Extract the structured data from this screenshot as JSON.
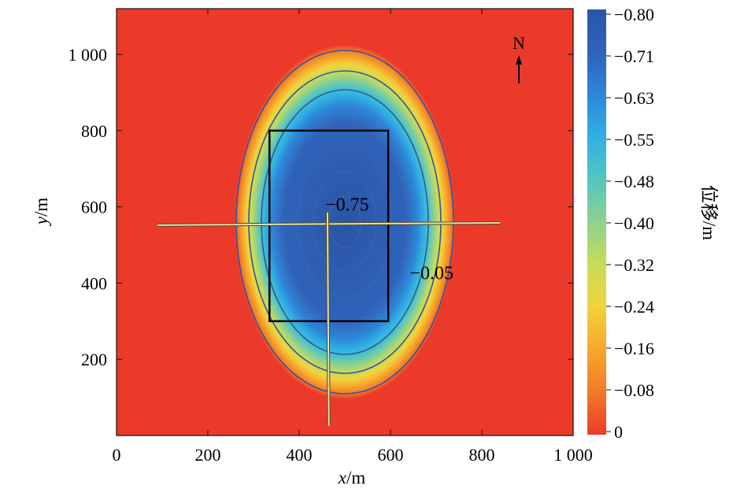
{
  "chart_data": {
    "type": "heatmap",
    "title": "",
    "xlabel": {
      "var": "x",
      "unit": "/m"
    },
    "ylabel": {
      "var": "y",
      "unit": "/m"
    },
    "xlim": [
      0,
      1000
    ],
    "ylim": [
      0,
      1120
    ],
    "xticks": [
      {
        "value": 0,
        "label": "0"
      },
      {
        "value": 200,
        "label": "200"
      },
      {
        "value": 400,
        "label": "400"
      },
      {
        "value": 600,
        "label": "600"
      },
      {
        "value": 800,
        "label": "800"
      },
      {
        "value": 1000,
        "label": "1 000"
      }
    ],
    "yticks": [
      {
        "value": 200,
        "label": "200"
      },
      {
        "value": 400,
        "label": "400"
      },
      {
        "value": 600,
        "label": "600"
      },
      {
        "value": 800,
        "label": "800"
      },
      {
        "value": 1000,
        "label": "1 000"
      }
    ],
    "colorbar": {
      "label": "位移/m",
      "range": [
        -0.8,
        0
      ],
      "ticks": [
        "−0.80",
        "−0.71",
        "−0.63",
        "−0.55",
        "−0.48",
        "−0.40",
        "−0.32",
        "−0.24",
        "−0.16",
        "−0.08",
        "0"
      ],
      "colors": [
        "#2b55a6",
        "#2f63bb",
        "#2e86d8",
        "#2fb1e4",
        "#53c6bf",
        "#8fd090",
        "#c7dc58",
        "#f1d33b",
        "#f7a72c",
        "#f17a26",
        "#ec3a2a"
      ]
    },
    "background_color": "#ec3a2a",
    "subsidence_center": {
      "x": 500,
      "y": 560
    },
    "contour_labels": [
      {
        "text": "−0.75",
        "x": 505,
        "y": 590
      },
      {
        "text": "−0.05",
        "x": 690,
        "y": 410
      }
    ],
    "working_face": {
      "x_min": 335,
      "x_max": 595,
      "y_min": 300,
      "y_max": 800
    },
    "survey_lines": [
      {
        "name": "strike",
        "x1": 90,
        "y1": 552,
        "x2": 840,
        "y2": 558
      },
      {
        "name": "dip",
        "x1": 465,
        "y1": 25,
        "x2": 462,
        "y2": 585
      }
    ],
    "north_arrow": {
      "label": "N"
    }
  }
}
